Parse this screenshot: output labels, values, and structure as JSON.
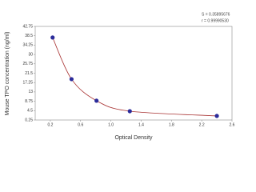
{
  "chart_data": {
    "type": "scatter",
    "x_label": "Optical Density",
    "y_label": "Mouse TPO concentration (ng/ml)",
    "annotations": [
      "S = 0.35895676",
      "r = 0.99990530"
    ],
    "x": [
      0.23,
      0.48,
      0.81,
      1.25,
      2.4
    ],
    "values": [
      37.7,
      18.8,
      9,
      4.25,
      2.1
    ],
    "color": "#2b2b9a",
    "line_color": "#a83232",
    "xlim": [
      0,
      2.6
    ],
    "xticks": [
      0.2,
      0.6,
      {
        "value": 1,
        "label": "1.0"
      },
      1.4,
      1.8,
      2.2,
      2.6
    ],
    "ylim": [
      0.25,
      42.75
    ],
    "yticks": [
      0.25,
      4.5,
      8.75,
      13,
      17.25,
      21.5,
      25.75,
      30,
      34.25,
      38.5,
      42.75
    ]
  }
}
